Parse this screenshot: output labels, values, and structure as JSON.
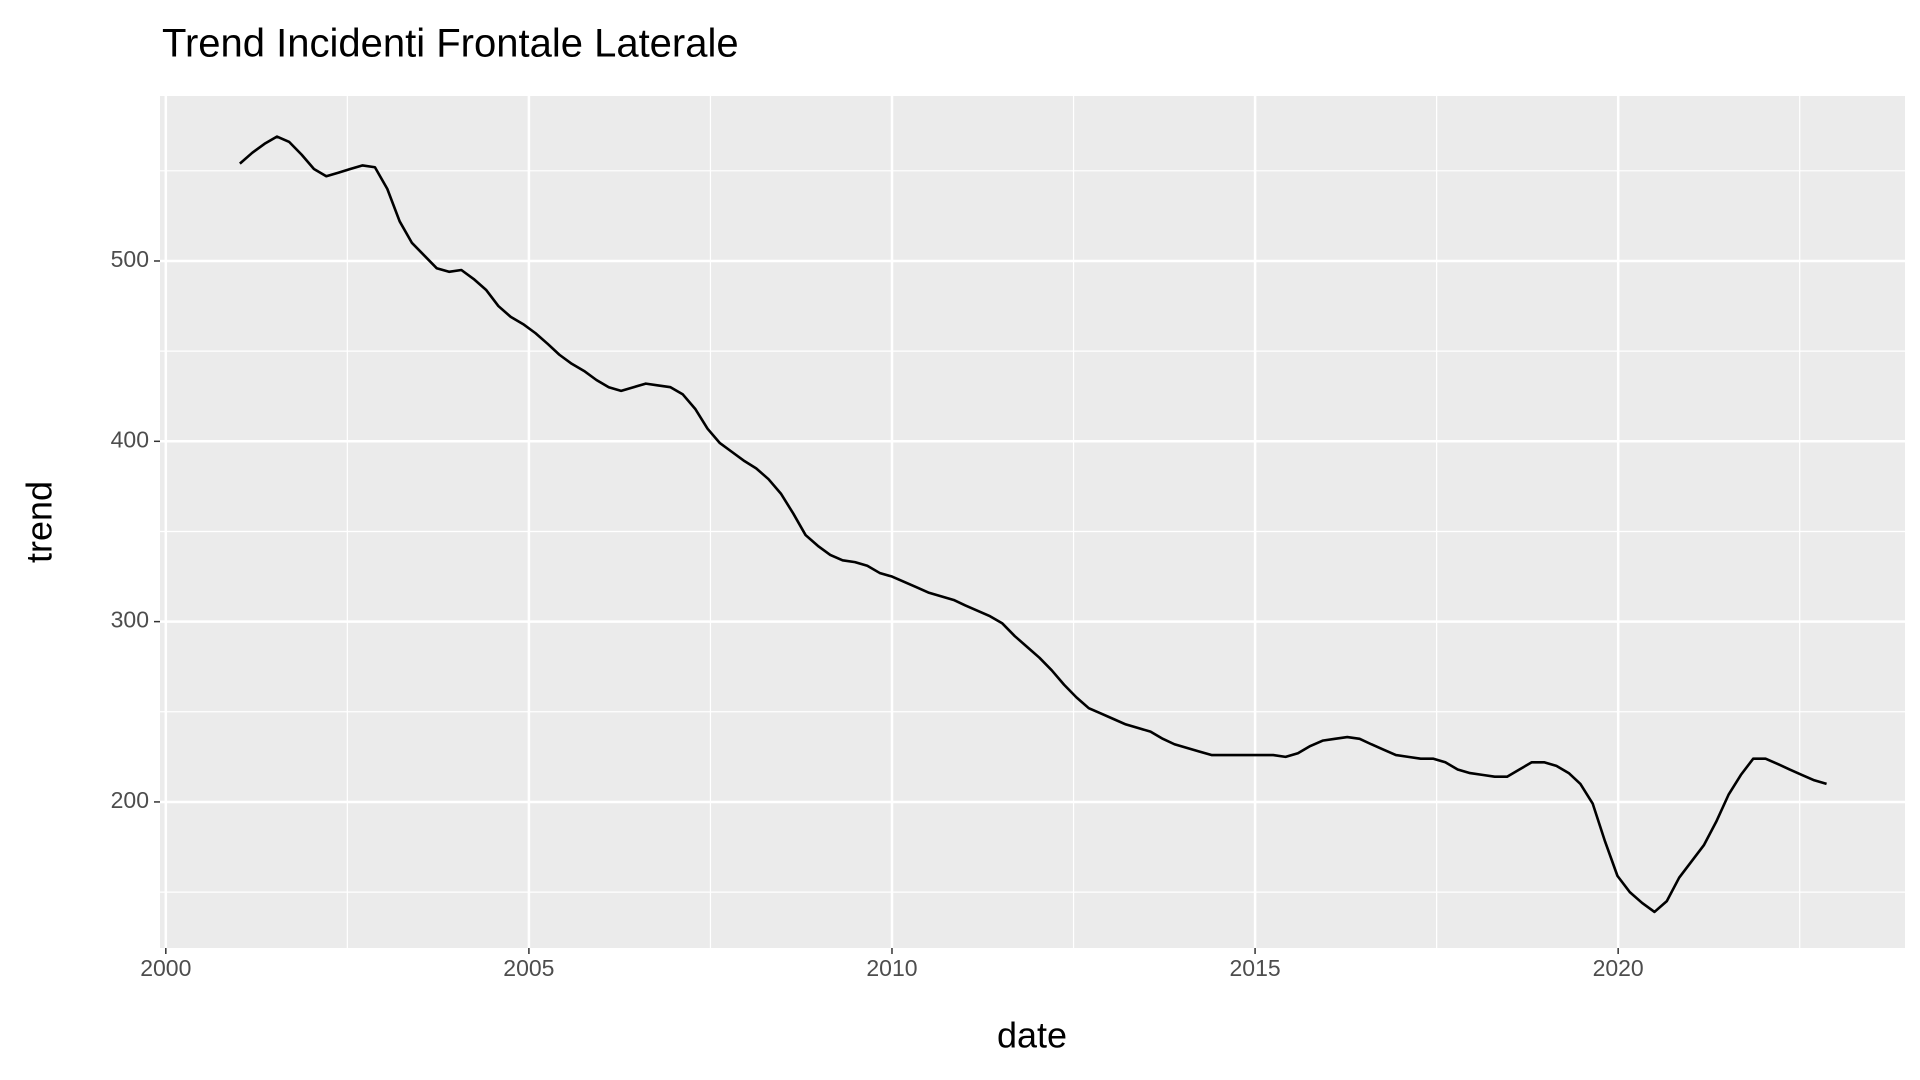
{
  "chart_data": {
    "type": "line",
    "title": "Trend Incidenti Frontale Laterale",
    "x_label": "date",
    "y_label": "trend",
    "x": [
      2001.02,
      2001.19,
      2001.36,
      2001.53,
      2001.7,
      2001.87,
      2002.04,
      2002.21,
      2002.38,
      2002.54,
      2002.71,
      2002.88,
      2003.05,
      2003.22,
      2003.39,
      2003.56,
      2003.73,
      2003.9,
      2004.07,
      2004.24,
      2004.41,
      2004.58,
      2004.75,
      2004.92,
      2005.09,
      2005.26,
      2005.42,
      2005.59,
      2005.76,
      2005.93,
      2006.1,
      2006.27,
      2006.44,
      2006.61,
      2006.78,
      2006.95,
      2007.12,
      2007.29,
      2007.46,
      2007.63,
      2007.8,
      2007.97,
      2008.13,
      2008.3,
      2008.47,
      2008.64,
      2008.81,
      2008.98,
      2009.15,
      2009.32,
      2009.49,
      2009.66,
      2009.83,
      2010.0,
      2010.17,
      2010.34,
      2010.51,
      2010.68,
      2010.85,
      2011.01,
      2011.18,
      2011.35,
      2011.52,
      2011.69,
      2011.86,
      2012.03,
      2012.2,
      2012.37,
      2012.54,
      2012.71,
      2012.88,
      2013.05,
      2013.22,
      2013.39,
      2013.56,
      2013.73,
      2013.89,
      2014.06,
      2014.23,
      2014.4,
      2014.57,
      2014.74,
      2014.91,
      2015.08,
      2015.25,
      2015.42,
      2015.59,
      2015.76,
      2015.93,
      2016.1,
      2016.27,
      2016.44,
      2016.6,
      2016.77,
      2016.94,
      2017.11,
      2017.28,
      2017.45,
      2017.62,
      2017.79,
      2017.96,
      2018.13,
      2018.3,
      2018.47,
      2018.64,
      2018.81,
      2018.98,
      2019.15,
      2019.32,
      2019.48,
      2019.65,
      2019.82,
      2019.99,
      2020.16,
      2020.33,
      2020.5,
      2020.67,
      2020.84,
      2021.01,
      2021.18,
      2021.35,
      2021.52,
      2021.69,
      2021.86,
      2022.03,
      2022.2,
      2022.36,
      2022.53,
      2022.7,
      2022.87
    ],
    "values": [
      554,
      560,
      565,
      569,
      566,
      559,
      551,
      547,
      549,
      551,
      553,
      552,
      540,
      522,
      510,
      503,
      496,
      494,
      495,
      490,
      484,
      475,
      469,
      465,
      460,
      454,
      448,
      443,
      439,
      434,
      430,
      428,
      430,
      432,
      431,
      430,
      426,
      418,
      407,
      399,
      394,
      389,
      385,
      379,
      371,
      360,
      348,
      342,
      337,
      334,
      333,
      331,
      327,
      325,
      322,
      319,
      316,
      314,
      312,
      309,
      306,
      303,
      299,
      292,
      286,
      280,
      273,
      265,
      258,
      252,
      249,
      246,
      243,
      241,
      239,
      235,
      232,
      230,
      228,
      226,
      226,
      226,
      226,
      226,
      226,
      225,
      227,
      231,
      234,
      235,
      236,
      235,
      232,
      229,
      226,
      225,
      224,
      224,
      222,
      218,
      216,
      215,
      214,
      214,
      218,
      222,
      222,
      220,
      216,
      210,
      199,
      178,
      159,
      150,
      144,
      139,
      145,
      158,
      167,
      176,
      189,
      204,
      215,
      224,
      224,
      221,
      218,
      215,
      212,
      210
    ],
    "color": "#000000",
    "xlim": [
      1999.92,
      2023.95
    ],
    "xticks": [
      2000,
      2005,
      2010,
      2015,
      2020
    ],
    "ylim": [
      119,
      591.5
    ],
    "yticks": [
      200,
      300,
      400,
      500
    ],
    "grid": true,
    "minor_grid": true
  }
}
